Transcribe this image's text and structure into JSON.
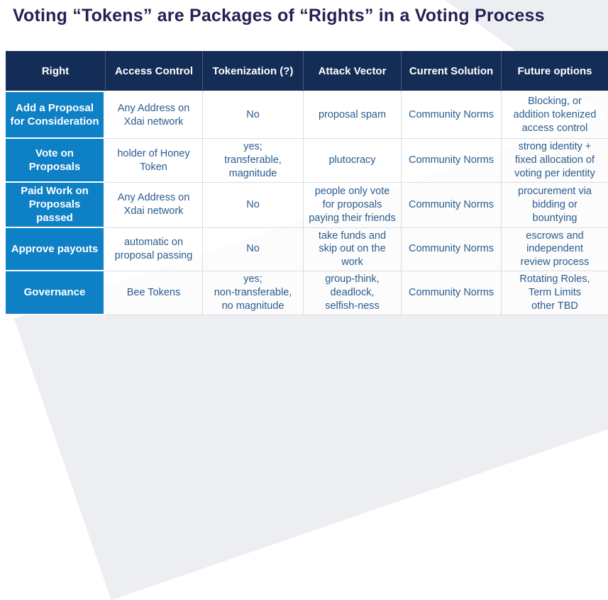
{
  "title": "Voting “Tokens” are Packages of “Rights” in a Voting Process",
  "colors": {
    "header_bg": "#132d56",
    "row_header_bg": "#0e81c6",
    "body_text": "#2a5c8f",
    "title_text": "#252253",
    "swoosh_gray": "#edeef1"
  },
  "table": {
    "columns": [
      "Right",
      "Access Control",
      "Tokenization (?)",
      "Attack Vector",
      "Current Solution",
      "Future options"
    ],
    "rows": [
      {
        "right": "Add a Proposal\nfor Consideration",
        "cells": [
          "Any Address on\nXdai network",
          "No",
          "proposal spam",
          "Community Norms",
          "Blocking, or\naddition tokenized\naccess control"
        ]
      },
      {
        "right": "Vote on Proposals",
        "cells": [
          "holder of Honey\nToken",
          "yes;\ntransferable,\nmagnitude",
          "plutocracy",
          "Community Norms",
          "strong identity +\nfixed allocation of\nvoting per identity"
        ]
      },
      {
        "right": "Paid Work on\nProposals passed",
        "cells": [
          "Any Address on\nXdai network",
          "No",
          "people only vote\nfor proposals\npaying their friends",
          "Community Norms",
          "procurement via\nbidding or\nbountying"
        ]
      },
      {
        "right": "Approve payouts",
        "cells": [
          "automatic on\nproposal passing",
          "No",
          "take funds and\nskip out on the\nwork",
          "Community Norms",
          "escrows and\nindependent\nreview process"
        ]
      },
      {
        "right": "Governance",
        "cells": [
          "Bee Tokens",
          "yes;\nnon-transferable,\nno magnitude",
          "group-think,\ndeadlock,\nselfish-ness",
          "Community Norms",
          "Rotating Roles,\nTerm Limits\nother TBD"
        ]
      }
    ]
  }
}
